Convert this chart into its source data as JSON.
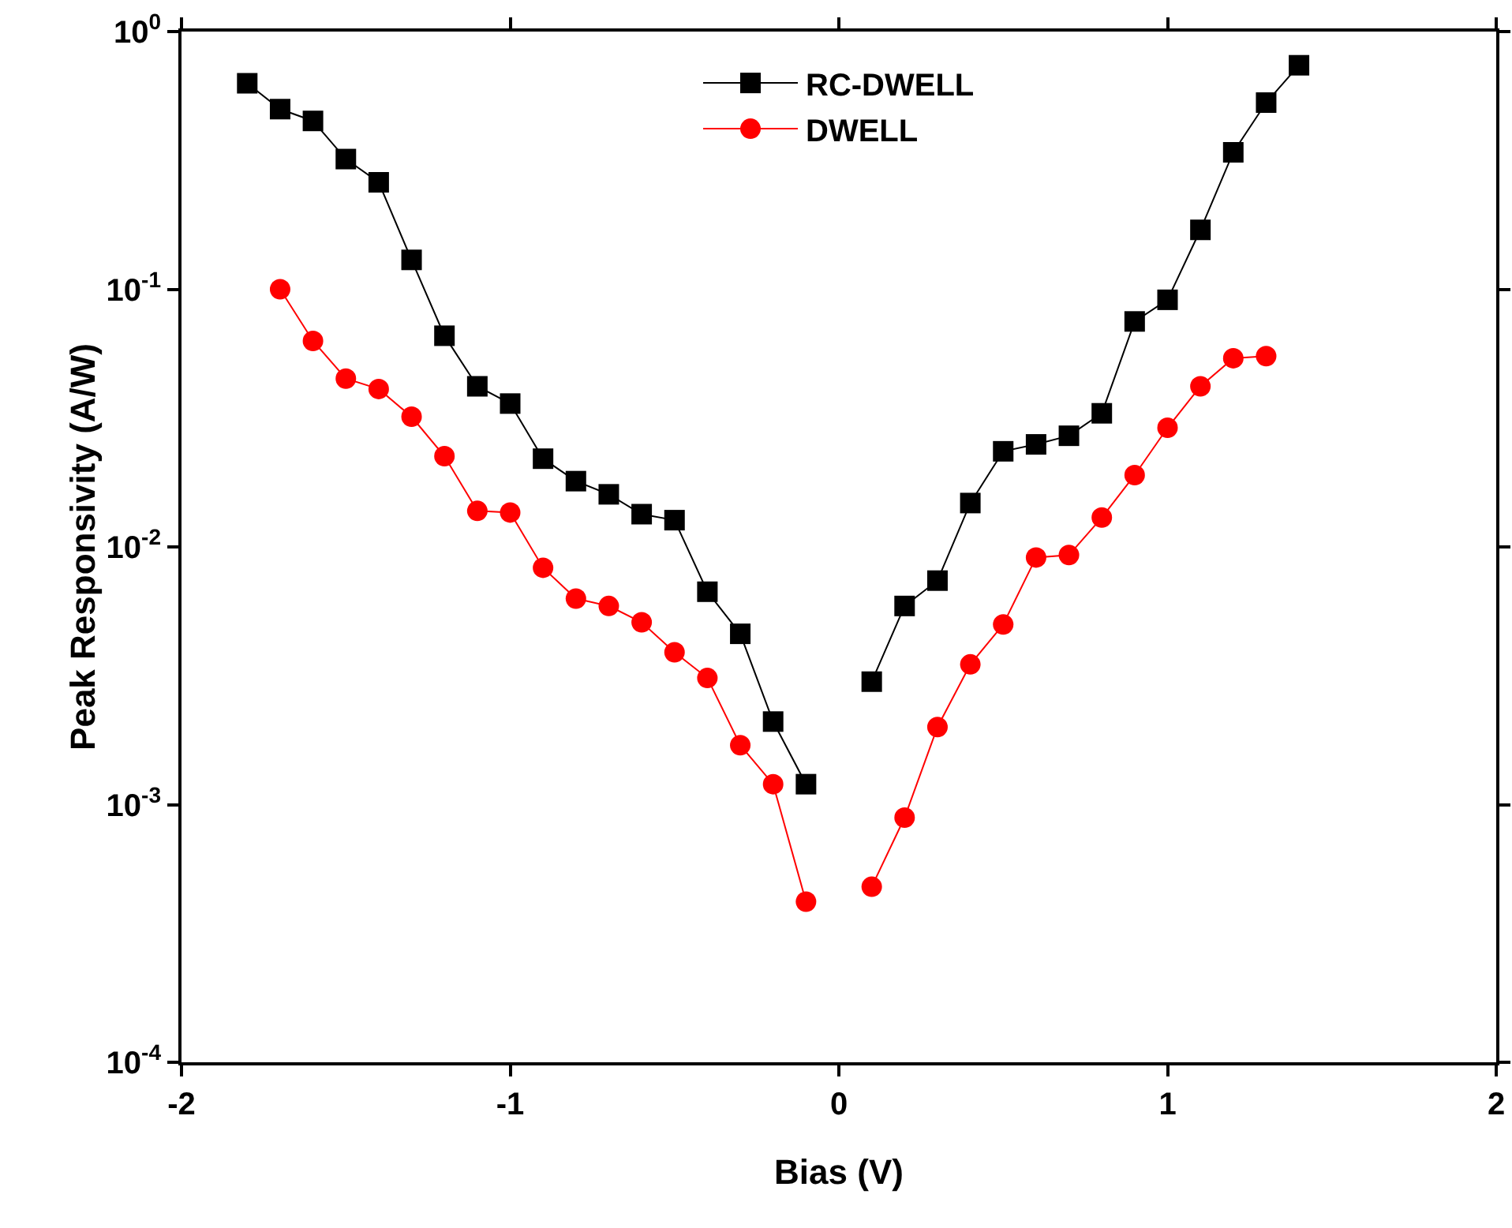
{
  "chart_data": {
    "type": "line",
    "xlabel": "Bias (V)",
    "ylabel": "Peak Responsivity (A/W)",
    "log": "y",
    "xlim": [
      -2,
      2
    ],
    "xticks": [
      -2,
      -1,
      0,
      1,
      2
    ],
    "ylim": [
      0.0001,
      1
    ],
    "yticks": [
      {
        "value": 0.0001,
        "label": "10$^{-4}$"
      },
      {
        "value": 0.001,
        "label": "10$^{-3}$"
      },
      {
        "value": 0.01,
        "label": "10$^{-2}$"
      },
      {
        "value": 0.1,
        "label": "10$^{-1}$"
      },
      {
        "value": 1,
        "label": "10$^{0}$"
      }
    ],
    "grid": false,
    "legend": "top",
    "line_style": "solid",
    "series": [
      {
        "name": "RC-DWELL",
        "color": "#000000",
        "marker": "square",
        "x": [
          -1.8,
          -1.7,
          -1.6,
          -1.5,
          -1.4,
          -1.3,
          -1.2,
          -1.1,
          -1.0,
          -0.9,
          -0.8,
          -0.7,
          -0.6,
          -0.5,
          -0.4,
          -0.3,
          -0.2,
          -0.1,
          0,
          0.1,
          0.2,
          0.3,
          0.4,
          0.5,
          0.6,
          0.7,
          0.8,
          0.9,
          1.0,
          1.1,
          1.2,
          1.3,
          1.4
        ],
        "values": [
          0.63,
          0.5,
          0.45,
          0.32,
          0.26,
          0.13,
          0.066,
          0.042,
          0.036,
          0.022,
          0.018,
          0.016,
          0.0134,
          0.0127,
          0.0067,
          0.0046,
          0.0021,
          0.0012,
          null,
          0.003,
          0.0059,
          0.0074,
          0.0148,
          0.0235,
          0.025,
          0.027,
          0.033,
          0.075,
          0.091,
          0.17,
          0.34,
          0.53,
          0.74
        ]
      },
      {
        "name": "DWELL",
        "color": "#ff0000",
        "marker": "circle",
        "x": [
          -1.7,
          -1.6,
          -1.5,
          -1.4,
          -1.3,
          -1.2,
          -1.1,
          -1.0,
          -0.9,
          -0.8,
          -0.7,
          -0.6,
          -0.5,
          -0.4,
          -0.3,
          -0.2,
          -0.1,
          0,
          0.1,
          0.2,
          0.3,
          0.4,
          0.5,
          0.6,
          0.7,
          0.8,
          0.9,
          1.0,
          1.1,
          1.2,
          1.3
        ],
        "values": [
          0.1,
          0.063,
          0.045,
          0.041,
          0.032,
          0.0225,
          0.0138,
          0.0136,
          0.0083,
          0.0063,
          0.0059,
          0.0051,
          0.0039,
          0.0031,
          0.0017,
          0.0012,
          0.00042,
          null,
          0.00048,
          0.00089,
          0.002,
          0.0035,
          0.005,
          0.0091,
          0.0093,
          0.013,
          0.019,
          0.029,
          0.042,
          0.054,
          0.055
        ]
      }
    ]
  }
}
